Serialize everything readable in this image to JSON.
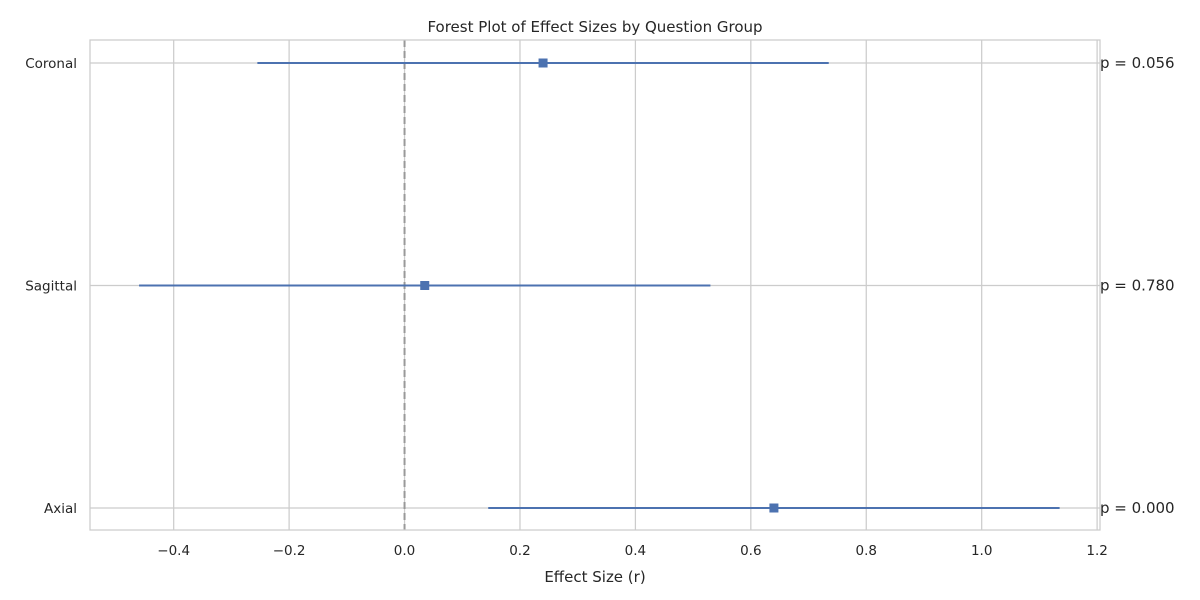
{
  "chart_data": {
    "type": "forest",
    "title": "Forest Plot of Effect Sizes by Question Group",
    "xlabel": "Effect Size (r)",
    "ylabel": "",
    "xlim": [
      -0.545,
      1.205
    ],
    "xticks": [
      -0.4,
      -0.2,
      0.0,
      0.2,
      0.4,
      0.6,
      0.8,
      1.0,
      1.2
    ],
    "xtick_labels": [
      "−0.4",
      "−0.2",
      "0.0",
      "0.2",
      "0.4",
      "0.6",
      "0.8",
      "1.0",
      "1.2"
    ],
    "reference_line": 0.0,
    "grid": true,
    "color": "#4c72b0",
    "reference_color": "#999999",
    "groups": [
      {
        "label": "Coronal",
        "effect": 0.24,
        "ci": [
          -0.255,
          0.735
        ],
        "p_label": "p = 0.056"
      },
      {
        "label": "Sagittal",
        "effect": 0.035,
        "ci": [
          -0.46,
          0.53
        ],
        "p_label": "p = 0.780"
      },
      {
        "label": "Axial",
        "effect": 0.64,
        "ci": [
          0.145,
          1.135
        ],
        "p_label": "p = 0.000"
      }
    ]
  }
}
